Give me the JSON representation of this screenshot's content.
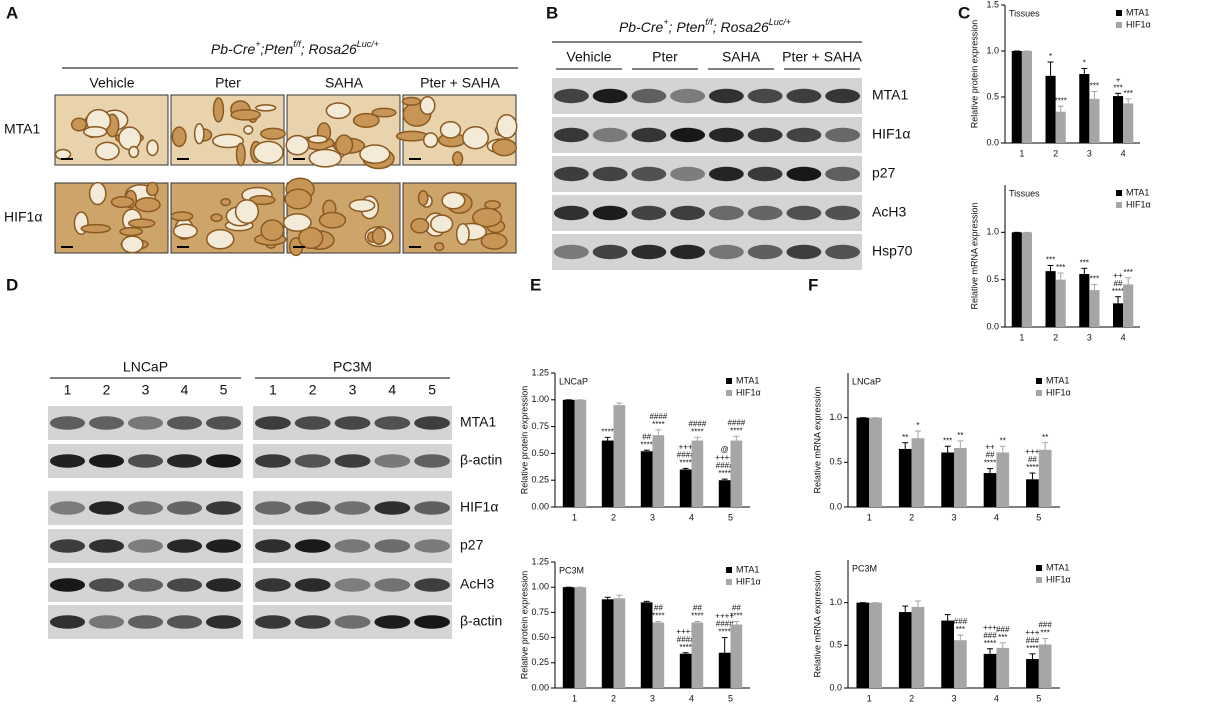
{
  "letters": [
    "A",
    "B",
    "C",
    "D",
    "E",
    "F"
  ],
  "panel_a": {
    "genotype": [
      "Pb-Cre",
      "+",
      ";Pten",
      "f/f",
      "; Rosa26",
      "Luc/+"
    ],
    "columns": [
      "Vehicle",
      "Pter",
      "SAHA",
      "Pter + SAHA"
    ],
    "rows": [
      "MTA1",
      "HIF1α"
    ]
  },
  "panel_b": {
    "genotype": [
      "Pb-Cre",
      "+",
      "; Pten",
      "f/f",
      "; Rosa26",
      "Luc/+"
    ],
    "groups": [
      "Vehicle",
      "Pter",
      "SAHA",
      "Pter + SAHA"
    ],
    "rows": [
      "MTA1",
      "HIF1α",
      "p27",
      "AcH3",
      "Hsp70"
    ]
  },
  "panel_d": {
    "groups": [
      "LNCaP",
      "PC3M"
    ],
    "lanes": [
      "1",
      "2",
      "3",
      "4",
      "5"
    ],
    "rows": [
      "MTA1",
      "β-actin",
      "HIF1α",
      "p27",
      "AcH3",
      "β-actin"
    ]
  },
  "chart_data": [
    {
      "type": "bar",
      "title": "Tissues",
      "ylabel": "Relative protein expression",
      "categories": [
        "1",
        "2",
        "3",
        "4"
      ],
      "ylim": [
        0,
        1.5
      ],
      "yticks": [
        {
          "value": 0,
          "label": "0.0"
        },
        0.5,
        {
          "value": 1,
          "label": "1.0"
        },
        1.5
      ],
      "legend": "upper right",
      "series": [
        {
          "name": "MTA1",
          "color": "#000000",
          "values": [
            1,
            0.73,
            0.75,
            0.51
          ],
          "errors": [
            0,
            0.15,
            0.06,
            0.03
          ],
          "annotations": [
            null,
            [
              "*"
            ],
            [
              "*"
            ],
            [
              "+",
              "***"
            ]
          ]
        },
        {
          "name": "HIF1α",
          "color": "#a6a6a6",
          "values": [
            1,
            0.34,
            0.48,
            0.43
          ],
          "errors": [
            0,
            0.06,
            0.08,
            0.05
          ],
          "annotations": [
            null,
            [
              "****"
            ],
            [
              "***"
            ],
            [
              "***"
            ]
          ]
        }
      ]
    },
    {
      "type": "bar",
      "title": "Tissues",
      "ylabel": "Relative mRNA expression",
      "categories": [
        "1",
        "2",
        "3",
        "4"
      ],
      "ylim": [
        0,
        1.5
      ],
      "yticks": [
        {
          "value": 0,
          "label": "0.0"
        },
        0.5,
        {
          "value": 1,
          "label": "1.0"
        }
      ],
      "legend": "upper right",
      "series": [
        {
          "name": "MTA1",
          "color": "#000000",
          "values": [
            1,
            0.59,
            0.56,
            0.25
          ],
          "errors": [
            0,
            0.06,
            0.06,
            0.07
          ],
          "annotations": [
            null,
            [
              "***"
            ],
            [
              "***"
            ],
            [
              "++",
              "##",
              "****"
            ]
          ]
        },
        {
          "name": "HIF1α",
          "color": "#a6a6a6",
          "values": [
            1,
            0.5,
            0.39,
            0.45
          ],
          "errors": [
            0,
            0.07,
            0.06,
            0.07
          ],
          "annotations": [
            null,
            [
              "***"
            ],
            [
              "***"
            ],
            [
              "***"
            ]
          ]
        }
      ]
    },
    {
      "type": "bar",
      "title": "LNCaP",
      "ylabel": "Relative protein expression",
      "categories": [
        "1",
        "2",
        "3",
        "4",
        "5"
      ],
      "ylim": [
        0,
        1.25
      ],
      "yticks": [
        {
          "value": 0,
          "label": "0.00"
        },
        {
          "value": 0.25,
          "label": "0.25"
        },
        {
          "value": 0.5,
          "label": "0.50"
        },
        {
          "value": 0.75,
          "label": "0.75"
        },
        {
          "value": 1,
          "label": "1.00"
        },
        {
          "value": 1.25,
          "label": "1.25"
        }
      ],
      "legend": "upper right",
      "series": [
        {
          "name": "MTA1",
          "color": "#000000",
          "values": [
            1,
            0.62,
            0.52,
            0.35,
            0.25
          ],
          "errors": [
            0,
            0.03,
            0.01,
            0.01,
            0.01
          ],
          "annotations": [
            null,
            [
              "****"
            ],
            [
              "##",
              "****"
            ],
            [
              "+++",
              "####",
              "****"
            ],
            [
              "@",
              "++++",
              "####",
              "****"
            ]
          ]
        },
        {
          "name": "HIF1α",
          "color": "#a6a6a6",
          "values": [
            1,
            0.95,
            0.67,
            0.62,
            0.62
          ],
          "errors": [
            0,
            0.02,
            0.05,
            0.03,
            0.04
          ],
          "annotations": [
            null,
            null,
            [
              "####",
              "****"
            ],
            [
              "####",
              "****"
            ],
            [
              "####",
              "****"
            ]
          ]
        }
      ]
    },
    {
      "type": "bar",
      "title": "PC3M",
      "ylabel": "Relative protein expression",
      "categories": [
        "1",
        "2",
        "3",
        "4",
        "5"
      ],
      "ylim": [
        0,
        1.25
      ],
      "yticks": [
        {
          "value": 0,
          "label": "0.00"
        },
        {
          "value": 0.25,
          "label": "0.25"
        },
        {
          "value": 0.5,
          "label": "0.50"
        },
        {
          "value": 0.75,
          "label": "0.75"
        },
        {
          "value": 1,
          "label": "1.00"
        },
        {
          "value": 1.25,
          "label": "1.25"
        }
      ],
      "legend": "upper right",
      "series": [
        {
          "name": "MTA1",
          "color": "#000000",
          "values": [
            1,
            0.88,
            0.85,
            0.34,
            0.35
          ],
          "errors": [
            0,
            0.02,
            0.01,
            0.01,
            0.15
          ],
          "annotations": [
            null,
            null,
            null,
            [
              "++++",
              "####",
              "****"
            ],
            [
              "++++",
              "####",
              "****"
            ]
          ]
        },
        {
          "name": "HIF1α",
          "color": "#a6a6a6",
          "values": [
            1,
            0.89,
            0.65,
            0.65,
            0.63
          ],
          "errors": [
            0,
            0.03,
            0.01,
            0.01,
            0.03
          ],
          "annotations": [
            null,
            null,
            [
              "##",
              "****"
            ],
            [
              "##",
              "****"
            ],
            [
              "##",
              "****"
            ]
          ]
        }
      ]
    },
    {
      "type": "bar",
      "title": "LNCaP",
      "ylabel": "Relative mRNA expression",
      "categories": [
        "1",
        "2",
        "3",
        "4",
        "5"
      ],
      "ylim": [
        0,
        1.5
      ],
      "yticks": [
        {
          "value": 0,
          "label": "0.0"
        },
        0.5,
        {
          "value": 1,
          "label": "1.0"
        }
      ],
      "legend": "upper right",
      "series": [
        {
          "name": "MTA1",
          "color": "#000000",
          "values": [
            1,
            0.65,
            0.61,
            0.38,
            0.31
          ],
          "errors": [
            0,
            0.07,
            0.07,
            0.05,
            0.07
          ],
          "annotations": [
            null,
            [
              "**"
            ],
            [
              "***"
            ],
            [
              "++",
              "##",
              "****"
            ],
            [
              "+++",
              "##",
              "****"
            ]
          ]
        },
        {
          "name": "HIF1α",
          "color": "#a6a6a6",
          "values": [
            1,
            0.77,
            0.66,
            0.61,
            0.64
          ],
          "errors": [
            0,
            0.08,
            0.08,
            0.07,
            0.08
          ],
          "annotations": [
            null,
            [
              "*"
            ],
            [
              "**"
            ],
            [
              "**"
            ],
            [
              "**"
            ]
          ]
        }
      ]
    },
    {
      "type": "bar",
      "title": "PC3M",
      "ylabel": "Relative mRNA expression",
      "categories": [
        "1",
        "2",
        "3",
        "4",
        "5"
      ],
      "ylim": [
        0,
        1.5
      ],
      "yticks": [
        {
          "value": 0,
          "label": "0.0"
        },
        0.5,
        {
          "value": 1,
          "label": "1.0"
        }
      ],
      "legend": "upper right",
      "series": [
        {
          "name": "MTA1",
          "color": "#000000",
          "values": [
            1,
            0.89,
            0.79,
            0.4,
            0.34
          ],
          "errors": [
            0,
            0.07,
            0.07,
            0.06,
            0.06
          ],
          "annotations": [
            null,
            null,
            null,
            [
              "+++",
              "###",
              "****"
            ],
            [
              "+++",
              "###",
              "****"
            ]
          ]
        },
        {
          "name": "HIF1α",
          "color": "#a6a6a6",
          "values": [
            1,
            0.95,
            0.56,
            0.47,
            0.51
          ],
          "errors": [
            0,
            0.07,
            0.06,
            0.06,
            0.07
          ],
          "annotations": [
            null,
            null,
            [
              "###",
              "***"
            ],
            [
              "###",
              "***"
            ],
            [
              "###",
              "***"
            ]
          ]
        }
      ]
    }
  ]
}
